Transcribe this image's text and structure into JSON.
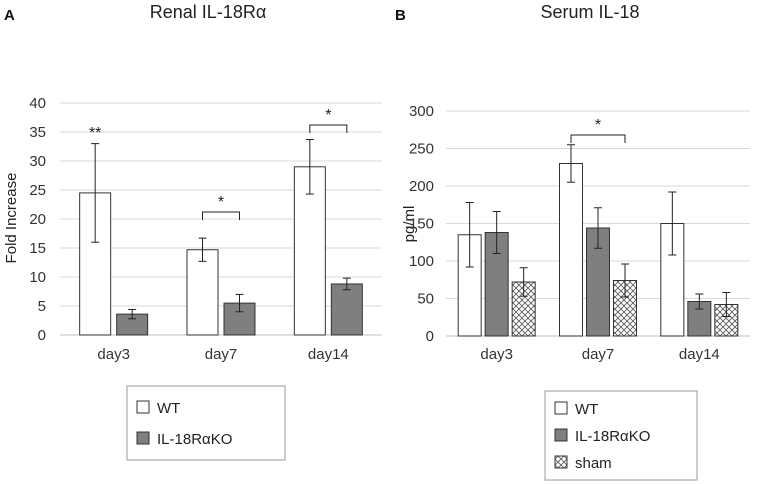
{
  "panels": [
    {
      "letter": "A",
      "chart_data": {
        "type": "bar",
        "title": "Renal IL-18Rα",
        "xlabel": "",
        "ylabel": "Fold Increase",
        "ylim": [
          0,
          40
        ],
        "yticks": [
          "0",
          "5",
          "10",
          "15",
          "20",
          "25",
          "30",
          "35",
          "40"
        ],
        "grid": true,
        "categories": [
          "day3",
          "day7",
          "day14"
        ],
        "series": [
          {
            "name": "WT",
            "values": [
              24.5,
              14.7,
              29.0
            ],
            "errors": [
              8.5,
              2.0,
              4.7
            ],
            "fill": "#ffffff"
          },
          {
            "name": "IL-18RαKO",
            "values": [
              3.6,
              5.5,
              8.8
            ],
            "errors": [
              0.8,
              1.5,
              1.0
            ],
            "fill": "#7f7f7f"
          }
        ],
        "annotations": [
          {
            "text": "**",
            "category": "day3",
            "series": "WT",
            "type": "single",
            "level": 35
          },
          {
            "text": "*",
            "category": "day7",
            "from_series": "WT",
            "to_series": "IL-18RαKO",
            "type": "bracket",
            "level": 21.2
          },
          {
            "text": "*",
            "category": "day14",
            "from_series": "WT",
            "to_series": "IL-18RαKO",
            "type": "bracket",
            "level": 36.2
          }
        ],
        "legend_position": "bottom"
      }
    },
    {
      "letter": "B",
      "chart_data": {
        "type": "bar",
        "title": "Serum IL-18",
        "xlabel": "",
        "ylabel": "pg/ml",
        "ylim": [
          0,
          300
        ],
        "yticks": [
          "0",
          "50",
          "100",
          "150",
          "200",
          "250",
          "300"
        ],
        "grid": true,
        "categories": [
          "day3",
          "day7",
          "day14"
        ],
        "series": [
          {
            "name": "WT",
            "values": [
              135,
              230,
              150
            ],
            "errors": [
              43,
              25,
              42
            ],
            "fill": "#ffffff"
          },
          {
            "name": "IL-18RαKO",
            "values": [
              138,
              144,
              46
            ],
            "errors": [
              28,
              27,
              10
            ],
            "fill": "#7f7f7f"
          },
          {
            "name": "sham",
            "values": [
              72,
              74,
              42
            ],
            "errors": [
              19,
              22,
              16
            ],
            "fill": "hatch"
          }
        ],
        "annotations": [
          {
            "text": "*",
            "category": "day7",
            "from_series": "WT",
            "to_series": "sham",
            "type": "bracket",
            "level": 268
          }
        ],
        "legend_position": "bottom"
      }
    }
  ],
  "colors": {
    "grid": "#d9d9d9",
    "axis": "#bfbfbf",
    "bar_stroke": "#333333",
    "ko_fill": "#7f7f7f"
  }
}
